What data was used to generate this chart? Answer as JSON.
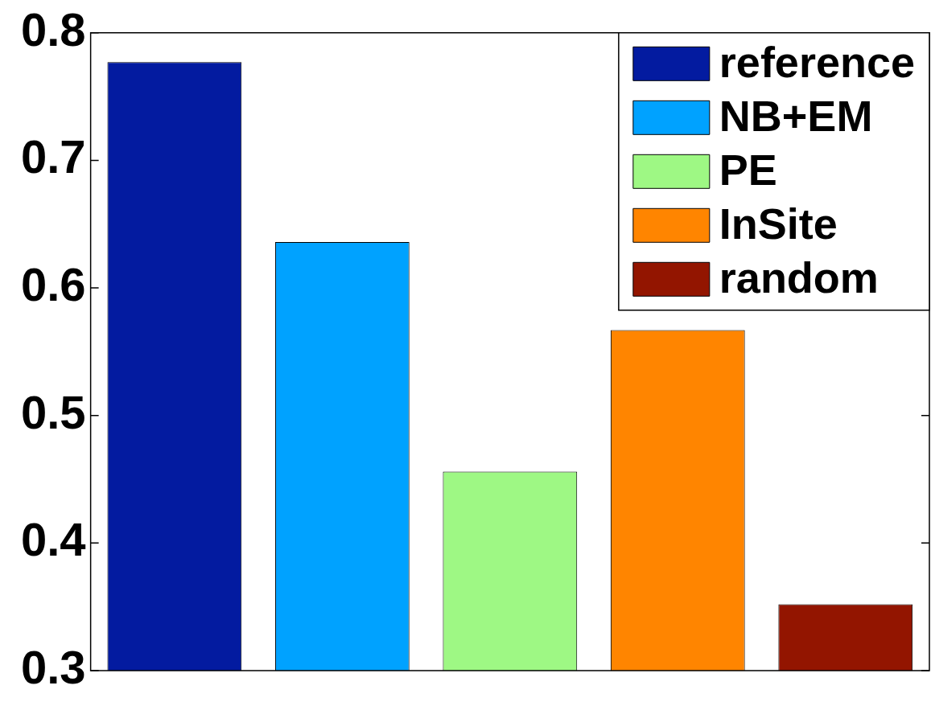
{
  "chart_data": {
    "type": "bar",
    "categories": [
      null
    ],
    "series": [
      {
        "name": "reference",
        "color": "#031ba0",
        "values": [
          0.777
        ]
      },
      {
        "name": "NB+EM",
        "color": "#00a2ff",
        "values": [
          0.636
        ]
      },
      {
        "name": "PE",
        "color": "#9ef884",
        "values": [
          0.456
        ]
      },
      {
        "name": "InSite",
        "color": "#ff8500",
        "values": [
          0.567
        ]
      },
      {
        "name": "random",
        "color": "#931500",
        "values": [
          0.352
        ]
      }
    ],
    "ylim": [
      0.3,
      0.8
    ],
    "yticks": [
      0.3,
      0.4,
      0.5,
      0.6,
      0.7,
      0.8
    ],
    "legend": "top right"
  }
}
